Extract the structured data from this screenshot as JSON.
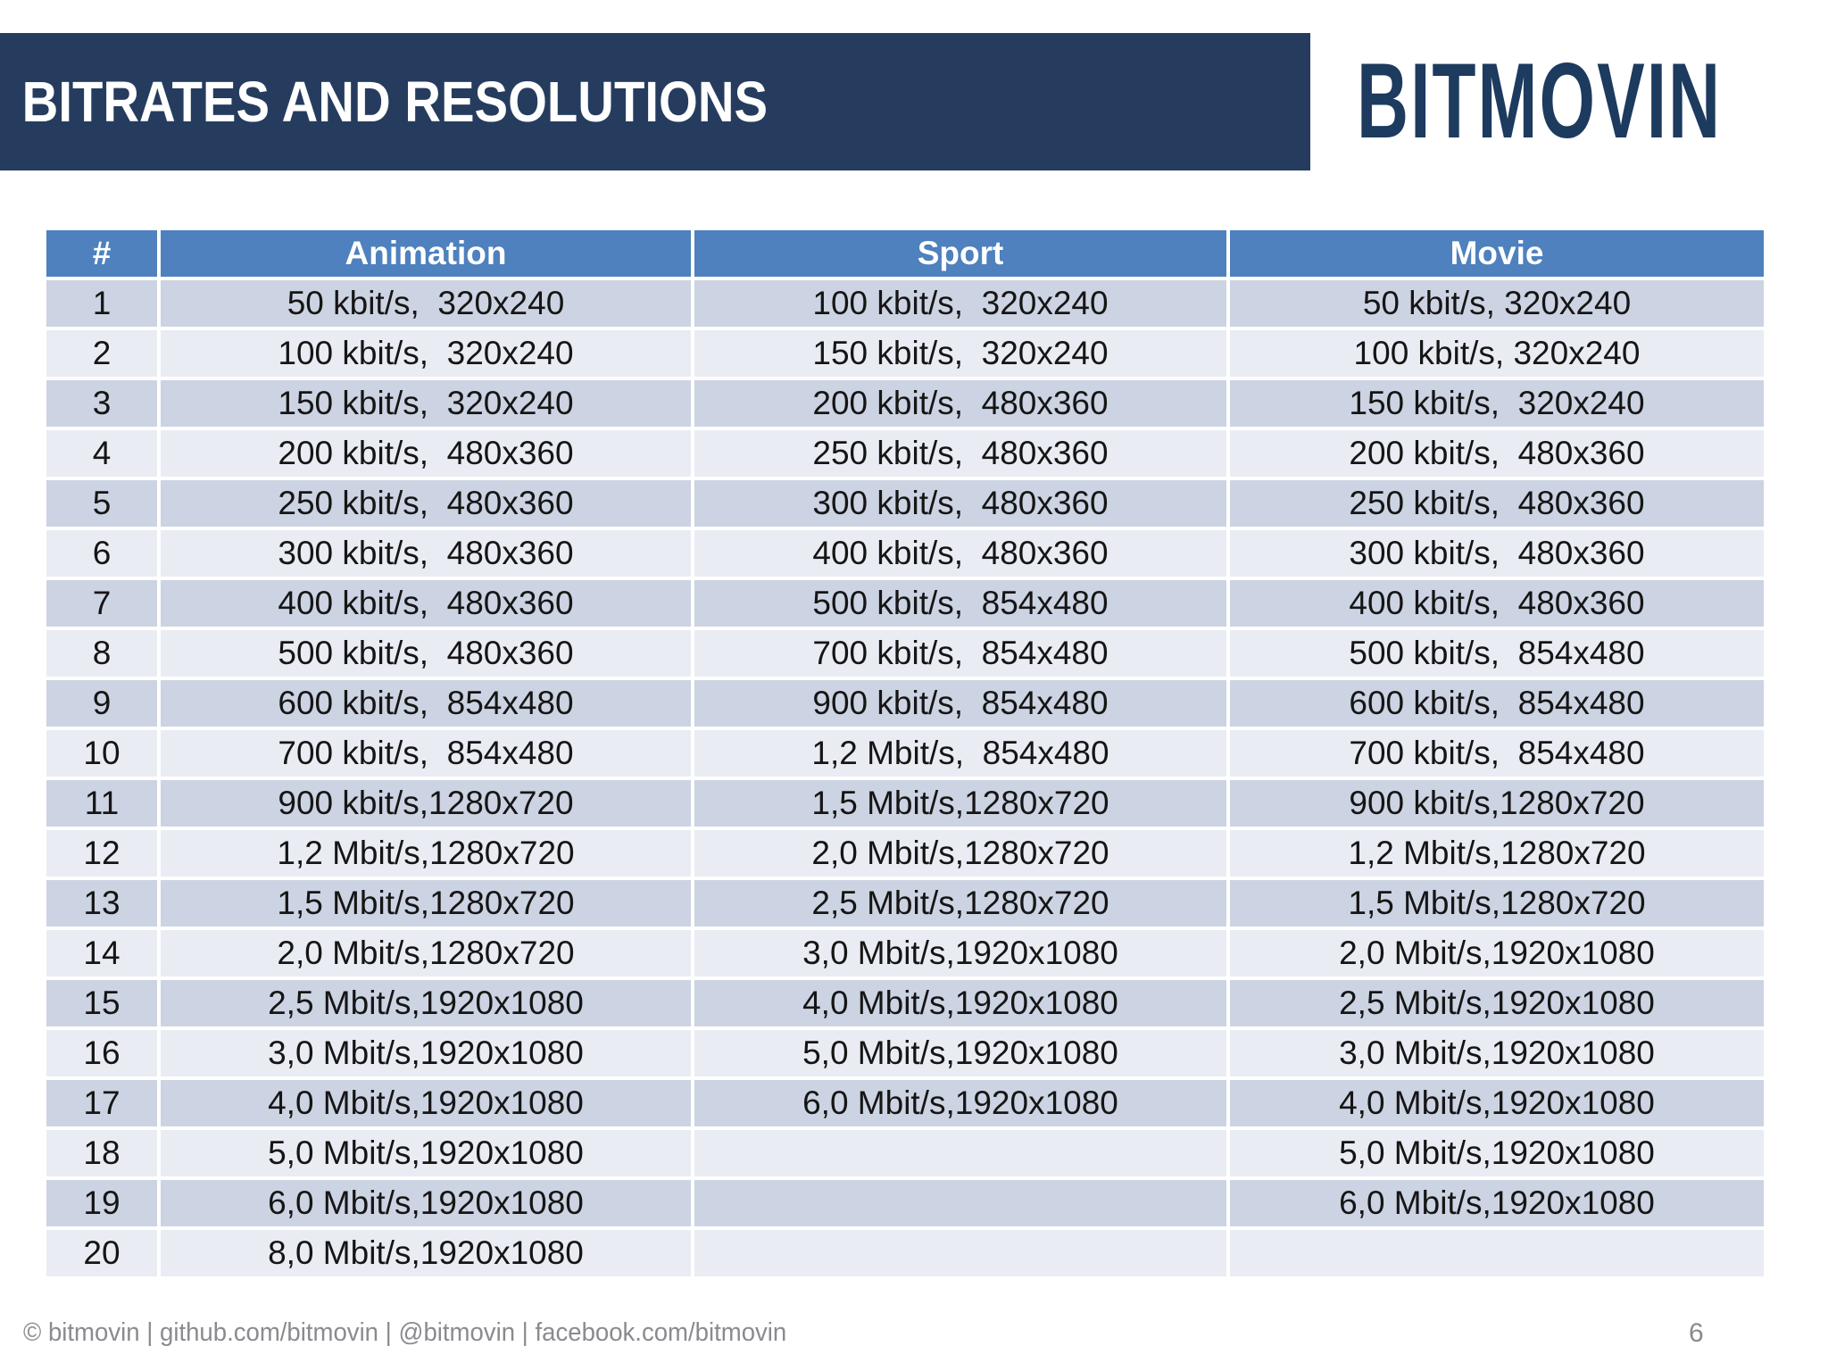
{
  "slide": {
    "title": "BITRATES AND RESOLUTIONS",
    "logo": "BITMOVIN",
    "footer": "© bitmovin | github.com/bitmovin | @bitmovin | facebook.com/bitmovin",
    "page_number": "6"
  },
  "colors": {
    "title_band_bg": "#253c5e",
    "logo_text": "#1d3a5f",
    "table_header_bg": "#4e81bd",
    "row_odd_bg": "#ccd3e2",
    "row_even_bg": "#eaecf4",
    "body_text": "#151515",
    "footer_text": "#8a8a8f"
  },
  "table": {
    "headers": [
      "#",
      "Animation",
      "Sport",
      "Movie"
    ],
    "rows": [
      [
        "1",
        "50 kbit/s,  320x240",
        "100 kbit/s,  320x240",
        "50 kbit/s, 320x240"
      ],
      [
        "2",
        "100 kbit/s,  320x240",
        "150 kbit/s,  320x240",
        "100 kbit/s, 320x240"
      ],
      [
        "3",
        "150 kbit/s,  320x240",
        "200 kbit/s,  480x360",
        "150 kbit/s,  320x240"
      ],
      [
        "4",
        "200 kbit/s,  480x360",
        "250 kbit/s,  480x360",
        "200 kbit/s,  480x360"
      ],
      [
        "5",
        "250 kbit/s,  480x360",
        "300 kbit/s,  480x360",
        "250 kbit/s,  480x360"
      ],
      [
        "6",
        "300 kbit/s,  480x360",
        "400 kbit/s,  480x360",
        "300 kbit/s,  480x360"
      ],
      [
        "7",
        "400 kbit/s,  480x360",
        "500 kbit/s,  854x480",
        "400 kbit/s,  480x360"
      ],
      [
        "8",
        "500 kbit/s,  480x360",
        "700 kbit/s,  854x480",
        "500 kbit/s,  854x480"
      ],
      [
        "9",
        "600 kbit/s,  854x480",
        "900 kbit/s,  854x480",
        "600 kbit/s,  854x480"
      ],
      [
        "10",
        "700 kbit/s,  854x480",
        "1,2 Mbit/s,  854x480",
        "700 kbit/s,  854x480"
      ],
      [
        "11",
        "900 kbit/s,1280x720",
        "1,5 Mbit/s,1280x720",
        "900 kbit/s,1280x720"
      ],
      [
        "12",
        "1,2 Mbit/s,1280x720",
        "2,0 Mbit/s,1280x720",
        "1,2 Mbit/s,1280x720"
      ],
      [
        "13",
        "1,5 Mbit/s,1280x720",
        "2,5 Mbit/s,1280x720",
        "1,5 Mbit/s,1280x720"
      ],
      [
        "14",
        "2,0 Mbit/s,1280x720",
        "3,0 Mbit/s,1920x1080",
        "2,0 Mbit/s,1920x1080"
      ],
      [
        "15",
        "2,5 Mbit/s,1920x1080",
        "4,0 Mbit/s,1920x1080",
        "2,5 Mbit/s,1920x1080"
      ],
      [
        "16",
        "3,0 Mbit/s,1920x1080",
        "5,0 Mbit/s,1920x1080",
        "3,0 Mbit/s,1920x1080"
      ],
      [
        "17",
        "4,0 Mbit/s,1920x1080",
        "6,0 Mbit/s,1920x1080",
        "4,0 Mbit/s,1920x1080"
      ],
      [
        "18",
        "5,0 Mbit/s,1920x1080",
        "",
        "5,0 Mbit/s,1920x1080"
      ],
      [
        "19",
        "6,0 Mbit/s,1920x1080",
        "",
        "6,0 Mbit/s,1920x1080"
      ],
      [
        "20",
        "8,0 Mbit/s,1920x1080",
        "",
        ""
      ]
    ]
  }
}
